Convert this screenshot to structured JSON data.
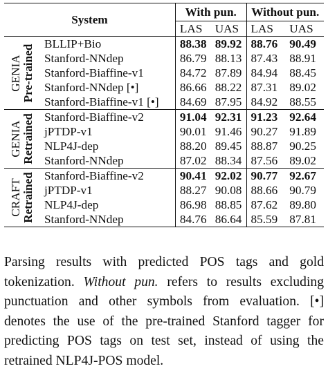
{
  "table": {
    "header": {
      "system": "System",
      "with_pun": "With pun.",
      "without_pun": "Without pun.",
      "las": "LAS",
      "uas": "UAS"
    },
    "groups": [
      {
        "line1": "GENIA",
        "line2": "Pre-trained",
        "rows": [
          {
            "system": "BLLIP+Bio",
            "w_las": "88.38",
            "w_uas": "89.92",
            "wo_las": "88.76",
            "wo_uas": "90.49",
            "bold": [
              true,
              true,
              true,
              true
            ]
          },
          {
            "system": "Stanford-NNdep",
            "w_las": "86.79",
            "w_uas": "88.13",
            "wo_las": "87.43",
            "wo_uas": "88.91",
            "bold": [
              false,
              false,
              false,
              false
            ]
          },
          {
            "system": "Stanford-Biaffine-v1",
            "w_las": "84.72",
            "w_uas": "87.89",
            "wo_las": "84.94",
            "wo_uas": "88.45",
            "bold": [
              false,
              false,
              false,
              false
            ]
          },
          {
            "system": "Stanford-NNdep [•]",
            "w_las": "86.66",
            "w_uas": "88.22",
            "wo_las": "87.31",
            "wo_uas": "89.02",
            "bold": [
              false,
              false,
              false,
              false
            ]
          },
          {
            "system": "Stanford-Biaffine-v1 [•]",
            "w_las": "84.69",
            "w_uas": "87.95",
            "wo_las": "84.92",
            "wo_uas": "88.55",
            "bold": [
              false,
              false,
              false,
              false
            ]
          }
        ]
      },
      {
        "line1": "GENIA",
        "line2": "Retrained",
        "rows": [
          {
            "system": "Stanford-Biaffine-v2",
            "w_las": "91.04",
            "w_uas": "92.31",
            "wo_las": "91.23",
            "wo_uas": "92.64",
            "bold": [
              true,
              true,
              true,
              true
            ]
          },
          {
            "system": "jPTDP-v1",
            "w_las": "90.01",
            "w_uas": "91.46",
            "wo_las": "90.27",
            "wo_uas": "91.89",
            "bold": [
              false,
              false,
              false,
              false
            ]
          },
          {
            "system": "NLP4J-dep",
            "w_las": "88.20",
            "w_uas": "89.45",
            "wo_las": "88.87",
            "wo_uas": "90.25",
            "bold": [
              false,
              false,
              false,
              false
            ]
          },
          {
            "system": "Stanford-NNdep",
            "w_las": "87.02",
            "w_uas": "88.34",
            "wo_las": "87.56",
            "wo_uas": "89.02",
            "bold": [
              false,
              false,
              false,
              false
            ]
          }
        ]
      },
      {
        "line1": "CRAFT",
        "line2": "Retrained",
        "rows": [
          {
            "system": "Stanford-Biaffine-v2",
            "w_las": "90.41",
            "w_uas": "92.02",
            "wo_las": "90.77",
            "wo_uas": "92.67",
            "bold": [
              true,
              true,
              true,
              true
            ]
          },
          {
            "system": "jPTDP-v1",
            "w_las": "88.27",
            "w_uas": "90.08",
            "wo_las": "88.66",
            "wo_uas": "90.79",
            "bold": [
              false,
              false,
              false,
              false
            ]
          },
          {
            "system": "NLP4J-dep",
            "w_las": "86.98",
            "w_uas": "88.85",
            "wo_las": "87.62",
            "wo_uas": "89.80",
            "bold": [
              false,
              false,
              false,
              false
            ]
          },
          {
            "system": "Stanford-NNdep",
            "w_las": "84.76",
            "w_uas": "86.64",
            "wo_las": "85.59",
            "wo_uas": "87.81",
            "bold": [
              false,
              false,
              false,
              false
            ]
          }
        ]
      }
    ]
  },
  "caption": {
    "part1": "Parsing results with predicted POS tags and gold tokenization. ",
    "italic": "Without pun.",
    "part2": " refers to results excluding punctuation and other symbols from evaluation. [•] denotes the use of the pre-trained Stanford tagger for predicting POS tags on test set, instead of using the retrained NLP4J-POS model."
  }
}
